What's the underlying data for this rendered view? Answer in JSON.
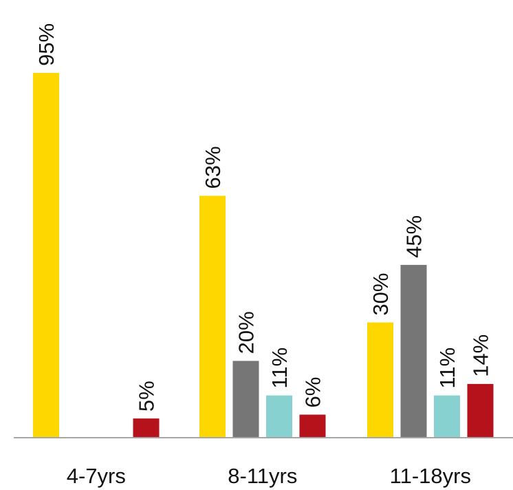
{
  "chart_data": {
    "type": "bar",
    "title": "",
    "xlabel": "",
    "ylabel": "",
    "categories": [
      "4-7yrs",
      "8-11yrs",
      "11-18yrs"
    ],
    "series": [
      {
        "color": "#FFD700",
        "values": [
          95,
          63,
          30
        ],
        "labels": [
          "95%",
          "63%",
          "30%"
        ]
      },
      {
        "color": "#767676",
        "values": [
          0,
          20,
          45
        ],
        "labels": [
          "",
          "20%",
          "45%"
        ]
      },
      {
        "color": "#88D1D1",
        "values": [
          0,
          11,
          11
        ],
        "labels": [
          "",
          "11%",
          "11%"
        ]
      },
      {
        "color": "#B5121B",
        "values": [
          5,
          6,
          14
        ],
        "labels": [
          "5%",
          "6%",
          "14%"
        ]
      }
    ],
    "ylim": [
      0,
      100
    ],
    "grid": false,
    "legend": "none",
    "y_axis_visible": false,
    "x_axis_line_color": "#A6A6A6"
  }
}
